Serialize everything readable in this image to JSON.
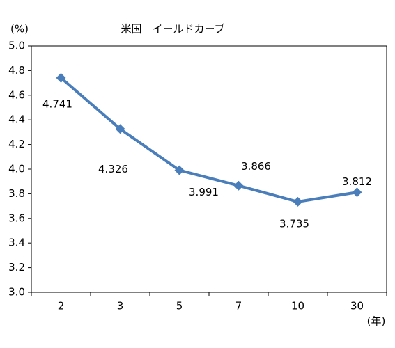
{
  "chart_data": {
    "type": "line",
    "title": "米国　イールドカーブ",
    "y_label": "(%)",
    "x_label": "(年)",
    "categories": [
      "2",
      "3",
      "5",
      "7",
      "10",
      "30"
    ],
    "series": [
      {
        "name": "米国",
        "color": "#4a7ebb",
        "values": [
          4.741,
          4.326,
          3.991,
          3.866,
          3.735,
          3.812
        ]
      }
    ],
    "ylim": [
      3.0,
      5.0
    ],
    "yticks": [
      {
        "value": 3,
        "label": "3.0"
      },
      3.2,
      3.4,
      3.6,
      3.8,
      {
        "value": 4,
        "label": "4.0"
      },
      4.2,
      4.4,
      4.6,
      4.8,
      {
        "value": 5,
        "label": "5.0"
      }
    ],
    "grid": false
  }
}
